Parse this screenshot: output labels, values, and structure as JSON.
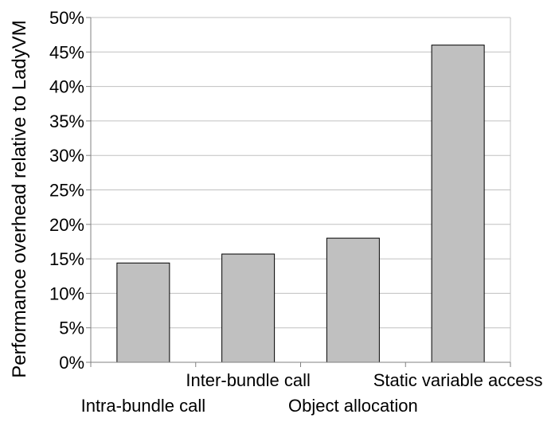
{
  "chart_data": {
    "type": "bar",
    "title": "",
    "xlabel": "",
    "ylabel": "Performance overhead relative to LadyVM",
    "categories": [
      "Intra-bundle call",
      "Inter-bundle call",
      "Object allocation",
      "Static variable access"
    ],
    "values": [
      14.4,
      15.7,
      18.0,
      46.0
    ],
    "value_unit": "%",
    "ylim": [
      0,
      50
    ],
    "yticks": [
      0,
      5,
      10,
      15,
      20,
      25,
      30,
      35,
      40,
      45,
      50
    ],
    "ytick_labels": [
      "0%",
      "5%",
      "10%",
      "15%",
      "20%",
      "25%",
      "30%",
      "35%",
      "40%",
      "45%",
      "50%"
    ],
    "grid": true,
    "legend": "none",
    "bar_color": "#c0c0c0",
    "bar_edge_color": "#000000",
    "grid_color": "#c0c0c0",
    "axis_color": "#808080"
  }
}
